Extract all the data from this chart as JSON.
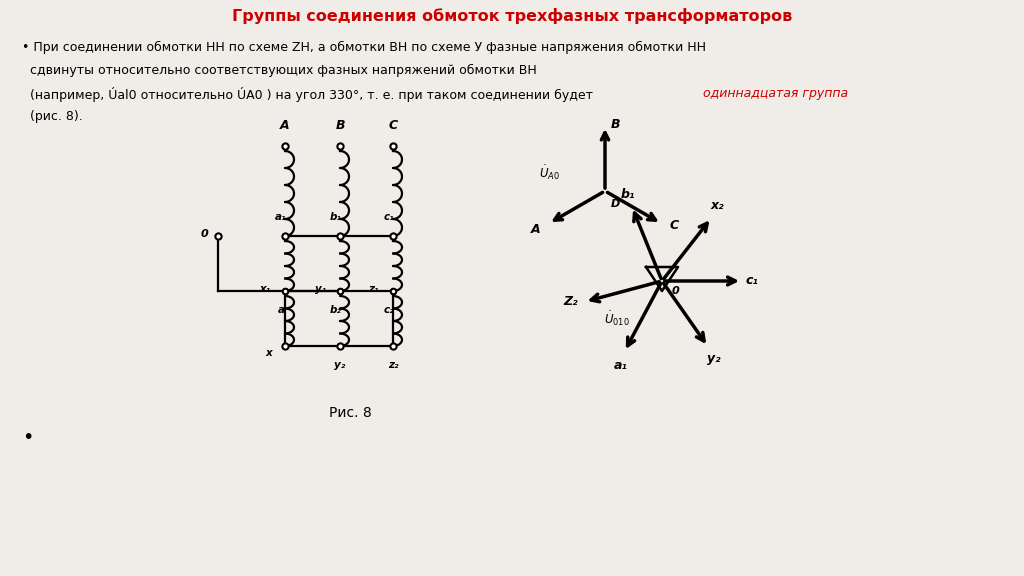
{
  "title": "Группы соединения обмоток трехфазных трансформаторов",
  "title_color": "#cc0000",
  "title_fontsize": 11.5,
  "bg_color": "#f0ede8",
  "body_fs": 9.0,
  "text_line1": "• При соединении обмотки НН по схеме ZН, а обмотки ВН по схеме У фазные напряжения обмотки НН",
  "text_line2": "  сдвинуты относительно соответствующих фазных напряжений обмотки ВН",
  "text_line3": "  (например, Úal0 относительно ÚA0 ) на угол 330°, т. е. при таком соединении будет ",
  "text_line3_red": "одиннадцатая группа",
  "text_line4": "  (рис. 8).",
  "caption": "Рис. 8"
}
